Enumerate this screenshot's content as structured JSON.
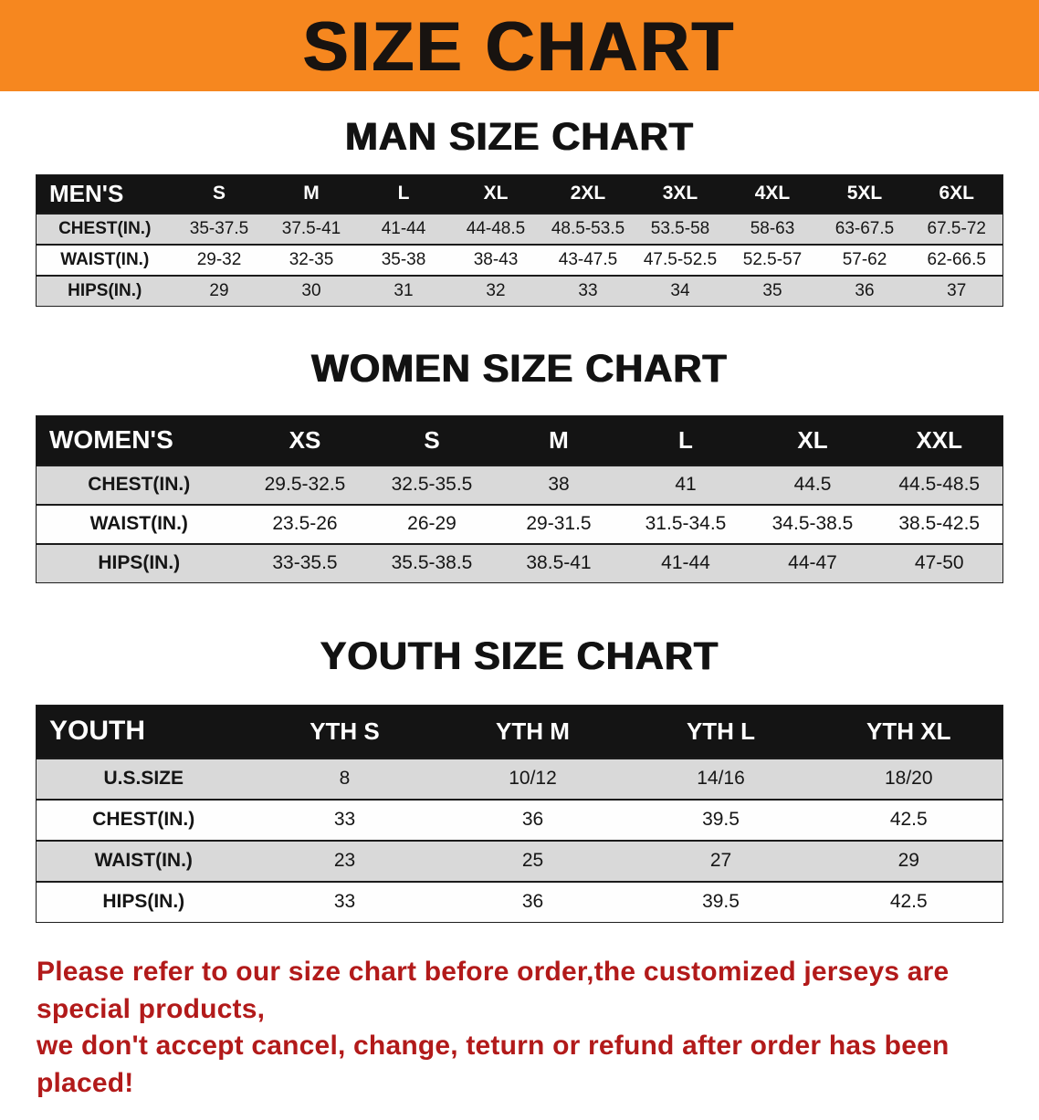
{
  "banner": {
    "title": "SIZE CHART",
    "bg_color": "#F6871F",
    "text_color": "#181310"
  },
  "sections": [
    {
      "id": "men",
      "heading": "MAN SIZE CHART",
      "table": {
        "header": [
          "MEN'S",
          "S",
          "M",
          "L",
          "XL",
          "2XL",
          "3XL",
          "4XL",
          "5XL",
          "6XL"
        ],
        "rows": [
          [
            "CHEST(IN.)",
            "35-37.5",
            "37.5-41",
            "41-44",
            "44-48.5",
            "48.5-53.5",
            "53.5-58",
            "58-63",
            "63-67.5",
            "67.5-72"
          ],
          [
            "WAIST(IN.)",
            "29-32",
            "32-35",
            "35-38",
            "38-43",
            "43-47.5",
            "47.5-52.5",
            "52.5-57",
            "57-62",
            "62-66.5"
          ],
          [
            "HIPS(IN.)",
            "29",
            "30",
            "31",
            "32",
            "33",
            "34",
            "35",
            "36",
            "37"
          ]
        ]
      }
    },
    {
      "id": "women",
      "heading": "WOMEN SIZE CHART",
      "table": {
        "header": [
          "WOMEN'S",
          "XS",
          "S",
          "M",
          "L",
          "XL",
          "XXL"
        ],
        "rows": [
          [
            "CHEST(IN.)",
            "29.5-32.5",
            "32.5-35.5",
            "38",
            "41",
            "44.5",
            "44.5-48.5"
          ],
          [
            "WAIST(IN.)",
            "23.5-26",
            "26-29",
            "29-31.5",
            "31.5-34.5",
            "34.5-38.5",
            "38.5-42.5"
          ],
          [
            "HIPS(IN.)",
            "33-35.5",
            "35.5-38.5",
            "38.5-41",
            "41-44",
            "44-47",
            "47-50"
          ]
        ]
      }
    },
    {
      "id": "youth",
      "heading": "YOUTH SIZE CHART",
      "table": {
        "header": [
          "YOUTH",
          "YTH S",
          "YTH M",
          "YTH L",
          "YTH XL"
        ],
        "rows": [
          [
            "U.S.SIZE",
            "8",
            "10/12",
            "14/16",
            "18/20"
          ],
          [
            "CHEST(IN.)",
            "33",
            "36",
            "39.5",
            "42.5"
          ],
          [
            "WAIST(IN.)",
            "23",
            "25",
            "27",
            "29"
          ],
          [
            "HIPS(IN.)",
            "33",
            "36",
            "39.5",
            "42.5"
          ]
        ]
      }
    }
  ],
  "disclaimer": {
    "line1": "Please refer to our size chart before order,the customized jerseys are special products,",
    "line2": "we don't accept cancel, change, teturn or refund after order has been placed!",
    "text_color": "#B21A1A"
  },
  "colors": {
    "header_bar_bg": "#141414",
    "row_stripe": "#D9D9D9",
    "page_bg": "#FFFFFF"
  }
}
